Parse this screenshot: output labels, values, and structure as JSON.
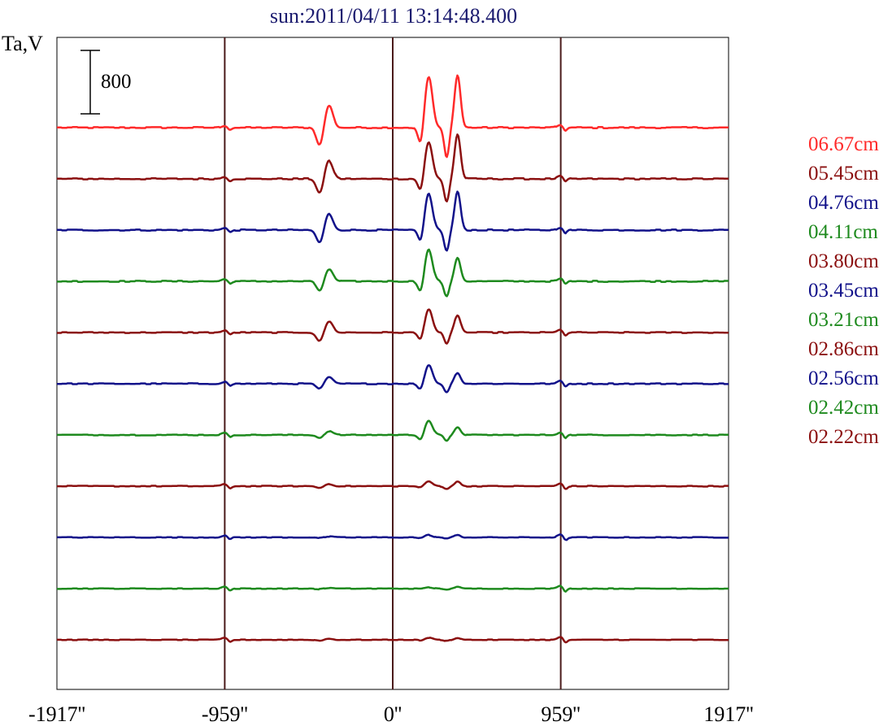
{
  "chart_data": {
    "type": "line",
    "title": "sun:2011/04/11 13:14:48.400",
    "ylabel": "Ta,V",
    "scale_bar_label": "800",
    "x_ticks": [
      "-1917''",
      "-959''",
      "0''",
      "959''",
      "1917''"
    ],
    "x_tick_values": [
      -1917,
      -959,
      0,
      959,
      1917
    ],
    "xlim": [
      -1917,
      1917
    ],
    "vertical_lines_at": [
      -959,
      0,
      959
    ],
    "grid": false,
    "legend_position": "right",
    "peaks_x": [
      -375,
      205,
      370
    ],
    "series": [
      {
        "name": "06.67cm",
        "color": "#ff2a2a",
        "amplitudes": [
          520,
          640,
          660
        ]
      },
      {
        "name": "05.45cm",
        "color": "#8b1010",
        "amplitudes": [
          420,
          460,
          560
        ]
      },
      {
        "name": "04.76cm",
        "color": "#12128a",
        "amplitudes": [
          380,
          460,
          480
        ]
      },
      {
        "name": "04.11cm",
        "color": "#1e8a1e",
        "amplitudes": [
          280,
          400,
          300
        ]
      },
      {
        "name": "03.80cm",
        "color": "#8b1010",
        "amplitudes": [
          260,
          300,
          220
        ]
      },
      {
        "name": "03.45cm",
        "color": "#12128a",
        "amplitudes": [
          150,
          240,
          140
        ]
      },
      {
        "name": "03.21cm",
        "color": "#1e8a1e",
        "amplitudes": [
          90,
          180,
          100
        ]
      },
      {
        "name": "02.86cm",
        "color": "#8b1010",
        "amplitudes": [
          50,
          60,
          55
        ]
      },
      {
        "name": "02.56cm",
        "color": "#12128a",
        "amplitudes": [
          20,
          30,
          30
        ]
      },
      {
        "name": "02.42cm",
        "color": "#1e8a1e",
        "amplitudes": [
          15,
          15,
          20
        ]
      },
      {
        "name": "02.22cm",
        "color": "#8b1010",
        "amplitudes": [
          25,
          25,
          25
        ]
      }
    ]
  }
}
